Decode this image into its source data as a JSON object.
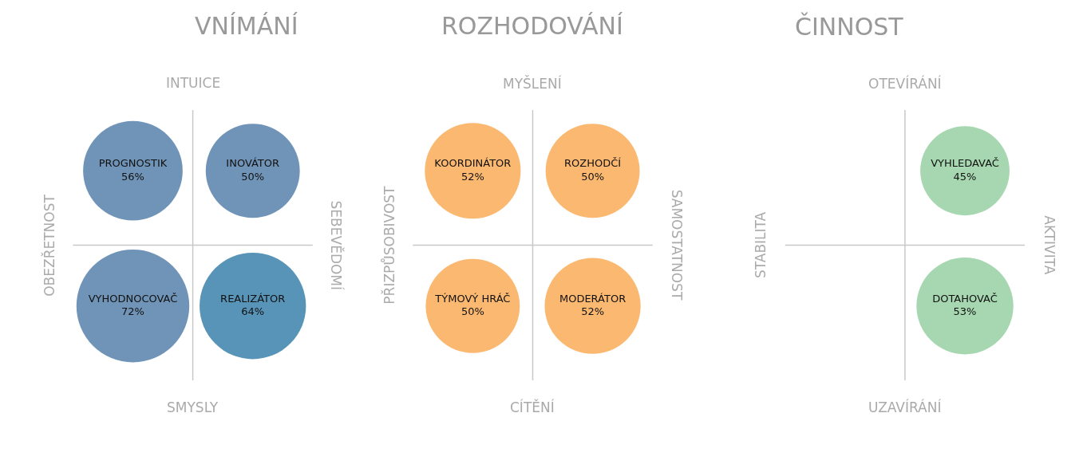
{
  "chart_data": [
    {
      "type": "other",
      "title": "VNÍMÁNÍ",
      "categories": [
        "PROGNOSTIK",
        "INOVÁTOR",
        "VYHODNOCOVAČ",
        "REALIZÁTOR"
      ],
      "values": [
        56,
        50,
        72,
        64
      ],
      "value_labels": [
        "56%",
        "50%",
        "72%",
        "64%"
      ],
      "colors": [
        "#336699",
        "#336699",
        "#336699",
        "#116699"
      ],
      "annotations": [
        "INTUICE",
        "SMYSLY",
        "OBEZŘETNOST",
        "SEBEVĚDOMÍ"
      ]
    },
    {
      "type": "other",
      "title": "ROZHODOVÁNÍ",
      "categories": [
        "KOORDINÁTOR",
        "ROZHODČÍ",
        "TÝMOVÝ HRÁČ",
        "MODERÁTOR"
      ],
      "values": [
        52,
        50,
        50,
        52
      ],
      "value_labels": [
        "52%",
        "50%",
        "50%",
        "52%"
      ],
      "colors": [
        "#fa9a35",
        "#fa9a35",
        "#fa9a35",
        "#fa9a35"
      ],
      "annotations": [
        "MYŠLENÍ",
        "CÍTĚNÍ",
        "PŘIZPŮSOBIVOST",
        "SAMOSTATNOST"
      ]
    },
    {
      "type": "other",
      "title": "ČINNOST",
      "categories": [
        null,
        "VYHLEDAVAČ",
        null,
        "DOTAHOVAČ"
      ],
      "values": [
        null,
        45,
        null,
        53
      ],
      "value_labels": [
        null,
        "45%",
        null,
        "53%"
      ],
      "colors": [
        null,
        "#80c68e",
        null,
        "#80c68e"
      ],
      "annotations": [
        "OTEVÍRÁNÍ",
        "UZAVÍRÁNÍ",
        "STABILITA",
        "AKTIVITA"
      ]
    }
  ]
}
